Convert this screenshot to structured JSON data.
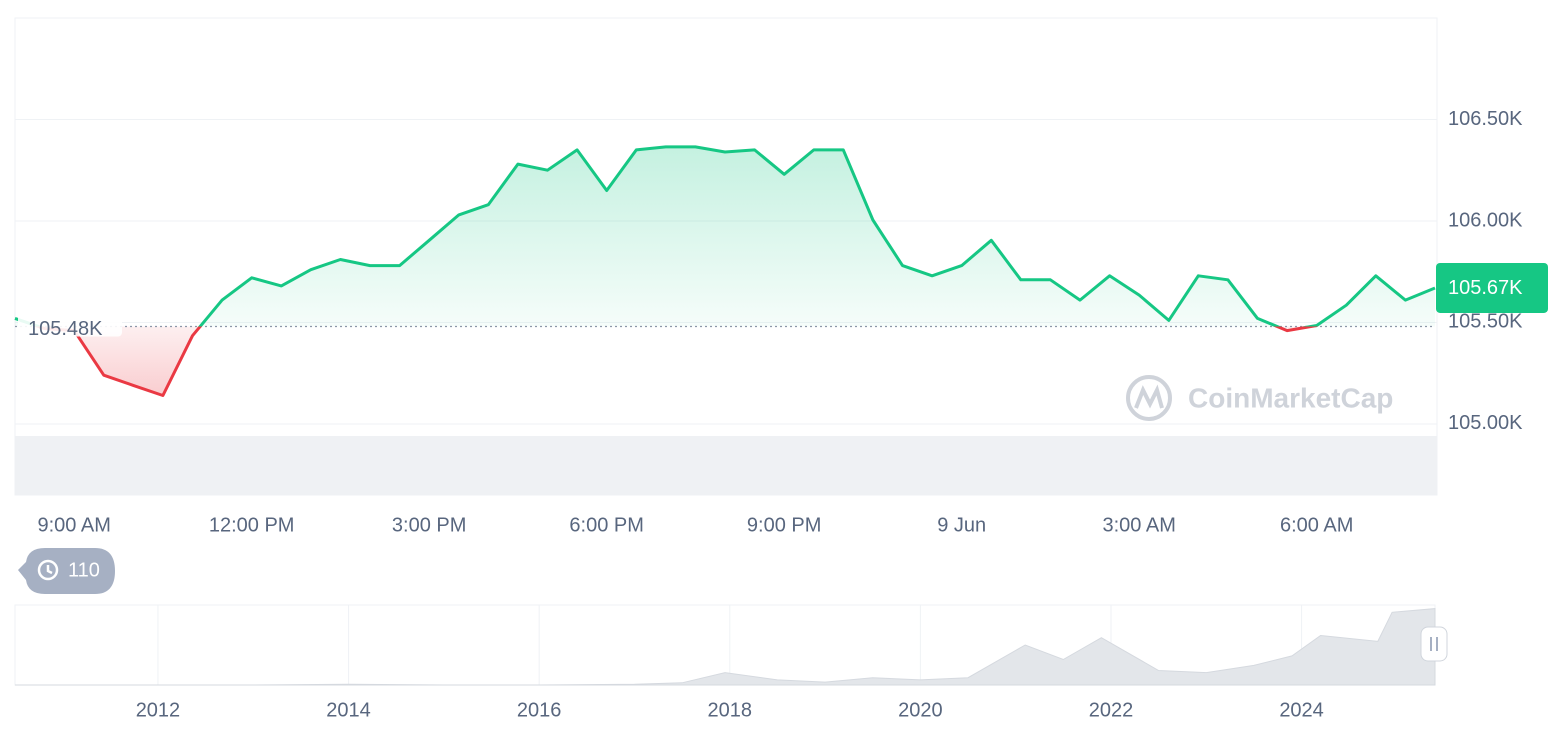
{
  "chart_data": [
    {
      "type": "line",
      "categories": [
        null,
        null,
        "9:00 AM",
        null,
        null,
        null,
        null,
        null,
        "12:00 PM",
        null,
        null,
        null,
        null,
        null,
        "3:00 PM",
        null,
        null,
        null,
        null,
        null,
        "6:00 PM",
        null,
        null,
        null,
        null,
        null,
        "9:00 PM",
        null,
        null,
        null,
        null,
        null,
        "9 Jun",
        null,
        null,
        null,
        null,
        null,
        "3:00 AM",
        null,
        null,
        null,
        null,
        null,
        "6:00 AM",
        null,
        null,
        null,
        null
      ],
      "values": [
        105520,
        105470,
        105460,
        105240,
        105190,
        105140,
        105435,
        105610,
        105720,
        105680,
        105760,
        105810,
        105780,
        105780,
        105905,
        106030,
        106080,
        106280,
        106250,
        106350,
        106150,
        106350,
        106365,
        106365,
        106340,
        106350,
        106230,
        106350,
        106350,
        106005,
        105780,
        105730,
        105780,
        105905,
        105710,
        105710,
        105610,
        105730,
        105635,
        105510,
        105730,
        105710,
        105520,
        105460,
        105485,
        105585,
        105730,
        105610,
        105670
      ],
      "ylim": [
        104650,
        107000
      ],
      "yticks": [
        {
          "value": 105000,
          "label": "105.00K"
        },
        {
          "value": 105500,
          "label": "105.50K"
        },
        {
          "value": 106000,
          "label": "106.00K"
        },
        {
          "value": 106500,
          "label": "106.50K"
        }
      ],
      "reference": {
        "value": 105480,
        "label": "105.48K"
      },
      "last_price": {
        "value": 105670,
        "label": "105.67K"
      },
      "up_color": "#16c784",
      "down_color": "#ea3943",
      "grid": true,
      "watermark": "CoinMarketCap",
      "history_count": "110"
    },
    {
      "type": "area",
      "x": [
        2010.5,
        2012,
        2013,
        2014,
        2015,
        2016,
        2017,
        2017.5,
        2017.95,
        2018.5,
        2019,
        2019.5,
        2020,
        2020.5,
        2021.1,
        2021.5,
        2021.9,
        2022.5,
        2023,
        2023.5,
        2023.9,
        2024.2,
        2024.8,
        2024.95,
        2025.4
      ],
      "values": [
        0,
        0,
        0,
        1,
        0,
        0,
        1,
        3,
        17,
        7,
        4,
        10,
        7,
        10,
        55,
        35,
        65,
        20,
        17,
        27,
        40,
        68,
        60,
        100,
        105
      ],
      "xlim": [
        2010.5,
        2025.4
      ],
      "ylim": [
        0,
        110
      ],
      "xticks": [
        2012,
        2014,
        2016,
        2018,
        2020,
        2022,
        2024
      ],
      "color": "#e3e6ea"
    }
  ]
}
